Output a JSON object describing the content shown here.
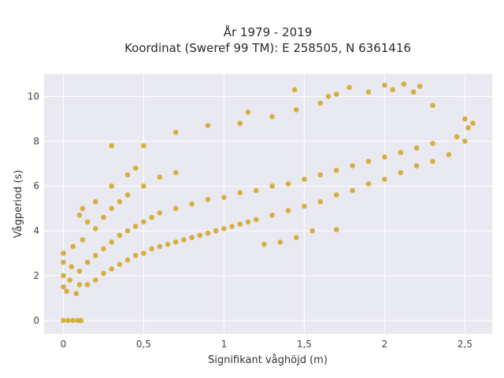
{
  "chart_data": {
    "type": "scatter",
    "title": "År 1979 - 2019",
    "subtitle": "Koordinat (Sweref 99 TM): E 258505, N 6361416",
    "xlabel": "Signifikant våghöjd (m)",
    "ylabel": "Vågperiod (s)",
    "xlim": [
      -0.12,
      2.67
    ],
    "ylim": [
      -0.6,
      11.0
    ],
    "x_ticks": [
      0,
      0.5,
      1,
      1.5,
      2,
      2.5
    ],
    "x_tick_labels": [
      "0",
      "0,5",
      "1",
      "1,5",
      "2",
      "2,5"
    ],
    "y_ticks": [
      0,
      2,
      4,
      6,
      8,
      10
    ],
    "y_tick_labels": [
      "0",
      "2",
      "4",
      "6",
      "8",
      "10"
    ],
    "grid": true,
    "colors": {
      "marker": "#D4A321",
      "plot_background": "#E9E9F1",
      "grid": "#FFFFFF"
    },
    "series": [
      {
        "points": [
          [
            0.0,
            0.0
          ],
          [
            0.03,
            0.0
          ],
          [
            0.06,
            0.0
          ],
          [
            0.09,
            0.0
          ],
          [
            0.11,
            0.0
          ],
          [
            0.0,
            1.5
          ],
          [
            0.0,
            2.0
          ],
          [
            0.0,
            2.6
          ],
          [
            0.0,
            3.0
          ],
          [
            0.02,
            1.3
          ],
          [
            0.04,
            1.8
          ],
          [
            0.05,
            2.4
          ],
          [
            0.06,
            3.3
          ],
          [
            0.08,
            1.2
          ],
          [
            0.1,
            1.6
          ],
          [
            0.1,
            2.2
          ],
          [
            0.12,
            3.6
          ],
          [
            0.15,
            1.6
          ],
          [
            0.15,
            2.6
          ],
          [
            0.15,
            4.4
          ],
          [
            0.2,
            1.8
          ],
          [
            0.2,
            2.9
          ],
          [
            0.2,
            4.1
          ],
          [
            0.2,
            5.3
          ],
          [
            0.25,
            2.1
          ],
          [
            0.25,
            3.2
          ],
          [
            0.25,
            4.6
          ],
          [
            0.3,
            2.3
          ],
          [
            0.3,
            3.5
          ],
          [
            0.3,
            5.0
          ],
          [
            0.3,
            6.0
          ],
          [
            0.35,
            2.5
          ],
          [
            0.35,
            3.8
          ],
          [
            0.35,
            5.3
          ],
          [
            0.4,
            2.7
          ],
          [
            0.4,
            4.0
          ],
          [
            0.4,
            5.6
          ],
          [
            0.45,
            2.9
          ],
          [
            0.45,
            4.2
          ],
          [
            0.5,
            3.0
          ],
          [
            0.5,
            4.4
          ],
          [
            0.5,
            6.0
          ],
          [
            0.55,
            3.2
          ],
          [
            0.55,
            4.6
          ],
          [
            0.6,
            3.3
          ],
          [
            0.6,
            4.8
          ],
          [
            0.6,
            6.4
          ],
          [
            0.65,
            3.4
          ],
          [
            0.7,
            3.5
          ],
          [
            0.7,
            5.0
          ],
          [
            0.7,
            6.6
          ],
          [
            0.75,
            3.6
          ],
          [
            0.8,
            3.7
          ],
          [
            0.8,
            5.2
          ],
          [
            0.85,
            3.8
          ],
          [
            0.9,
            3.9
          ],
          [
            0.9,
            5.4
          ],
          [
            0.95,
            4.0
          ],
          [
            1.0,
            4.1
          ],
          [
            1.0,
            5.5
          ],
          [
            1.05,
            4.2
          ],
          [
            1.1,
            4.3
          ],
          [
            1.1,
            5.7
          ],
          [
            1.15,
            4.4
          ],
          [
            1.2,
            4.5
          ],
          [
            1.2,
            5.8
          ],
          [
            1.3,
            4.7
          ],
          [
            1.3,
            6.0
          ],
          [
            1.4,
            4.9
          ],
          [
            1.4,
            6.1
          ],
          [
            1.5,
            5.1
          ],
          [
            1.5,
            6.3
          ],
          [
            1.6,
            5.3
          ],
          [
            1.6,
            6.5
          ],
          [
            1.7,
            5.6
          ],
          [
            1.7,
            6.7
          ],
          [
            1.8,
            5.8
          ],
          [
            1.8,
            6.9
          ],
          [
            1.9,
            6.1
          ],
          [
            1.9,
            7.1
          ],
          [
            2.0,
            6.3
          ],
          [
            2.0,
            7.3
          ],
          [
            2.1,
            6.6
          ],
          [
            2.1,
            7.5
          ],
          [
            2.2,
            6.9
          ],
          [
            2.2,
            7.7
          ],
          [
            2.3,
            7.1
          ],
          [
            2.3,
            7.9
          ],
          [
            2.4,
            7.4
          ],
          [
            2.45,
            8.2
          ],
          [
            2.5,
            8.0
          ],
          [
            2.52,
            8.6
          ],
          [
            2.5,
            9.0
          ],
          [
            2.55,
            8.8
          ],
          [
            0.3,
            7.8
          ],
          [
            0.5,
            7.8
          ],
          [
            0.7,
            8.4
          ],
          [
            0.9,
            8.7
          ],
          [
            1.1,
            8.8
          ],
          [
            1.15,
            9.3
          ],
          [
            1.3,
            9.1
          ],
          [
            1.45,
            9.4
          ],
          [
            1.6,
            9.7
          ],
          [
            1.7,
            10.1
          ],
          [
            1.78,
            10.4
          ],
          [
            1.9,
            10.2
          ],
          [
            2.0,
            10.5
          ],
          [
            2.05,
            10.3
          ],
          [
            2.12,
            10.55
          ],
          [
            2.18,
            10.2
          ],
          [
            2.22,
            10.45
          ],
          [
            2.3,
            9.6
          ],
          [
            1.44,
            10.3
          ],
          [
            1.65,
            10.0
          ],
          [
            1.55,
            4.0
          ],
          [
            1.7,
            4.05
          ],
          [
            1.45,
            3.7
          ],
          [
            1.35,
            3.5
          ],
          [
            1.25,
            3.4
          ],
          [
            0.1,
            4.7
          ],
          [
            0.12,
            5.0
          ],
          [
            0.4,
            6.5
          ],
          [
            0.45,
            6.8
          ]
        ]
      }
    ]
  }
}
